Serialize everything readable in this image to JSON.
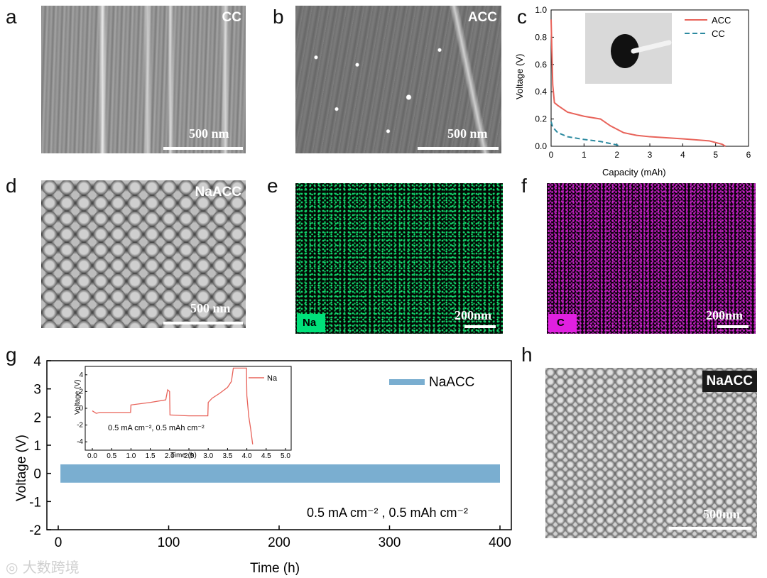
{
  "panels": {
    "a": {
      "letter": "a",
      "tag": "CC",
      "scale": "500 nm"
    },
    "b": {
      "letter": "b",
      "tag": "ACC",
      "scale": "500 nm"
    },
    "c": {
      "letter": "c"
    },
    "d": {
      "letter": "d",
      "tag": "NaACC",
      "scale": "500 nm"
    },
    "e": {
      "letter": "e",
      "tag": "Na",
      "scale": "200nm",
      "color": "#00e07a"
    },
    "f": {
      "letter": "f",
      "tag": "C",
      "scale": "200nm",
      "color": "#e020e0"
    },
    "g": {
      "letter": "g"
    },
    "h": {
      "letter": "h",
      "tag": "NaACC",
      "scale": "500nm"
    }
  },
  "colors": {
    "acc": "#e8635a",
    "cc": "#2c8aa0",
    "naacc": "#7aaed0",
    "na_inset": "#e8635a"
  },
  "chart_data": [
    {
      "type": "line",
      "panel": "c",
      "xlabel": "Capacity (mAh)",
      "ylabel": "Voltage (V)",
      "xlim": [
        0,
        6
      ],
      "ylim": [
        0,
        1.0
      ],
      "xticks": [
        "0",
        "1",
        "2",
        "3",
        "4",
        "5",
        "6"
      ],
      "yticks": [
        "0.0",
        "0.2",
        "0.4",
        "0.6",
        "0.8",
        "1.0"
      ],
      "legend_position": "top-right",
      "series": [
        {
          "name": "ACC",
          "x": [
            0.0,
            0.05,
            0.1,
            0.2,
            0.5,
            1.0,
            1.5,
            1.8,
            2.2,
            2.6,
            3.0,
            4.0,
            4.8,
            5.2,
            5.3
          ],
          "y": [
            0.93,
            0.45,
            0.32,
            0.3,
            0.25,
            0.22,
            0.2,
            0.15,
            0.1,
            0.08,
            0.07,
            0.055,
            0.04,
            0.015,
            0.0
          ]
        },
        {
          "name": "CC",
          "x": [
            0.0,
            0.05,
            0.2,
            0.5,
            1.0,
            1.5,
            2.0,
            2.1
          ],
          "y": [
            0.18,
            0.14,
            0.1,
            0.07,
            0.05,
            0.035,
            0.01,
            0.0
          ]
        }
      ]
    },
    {
      "type": "line",
      "panel": "g",
      "xlabel": "Time (h)",
      "ylabel": "Voltage (V)",
      "xlim": [
        0,
        400
      ],
      "ylim": [
        -2,
        4
      ],
      "xticks": [
        "0",
        "100",
        "200",
        "300",
        "400"
      ],
      "yticks": [
        "-2",
        "-1",
        "0",
        "1",
        "2",
        "3",
        "4"
      ],
      "annotation": "0.5 mA cm⁻² , 0.5 mAh cm⁻²",
      "legend_position": "top-right",
      "series": [
        {
          "name": "NaACC",
          "x_range": [
            2,
            400
          ],
          "band": [
            -0.33,
            0.32
          ]
        }
      ]
    },
    {
      "type": "line",
      "panel": "g-inset",
      "xlabel": "Time (h)",
      "ylabel": "Voltage (V)",
      "xlim": [
        0,
        5
      ],
      "ylim": [
        -5,
        5
      ],
      "xticks": [
        "0.0",
        "0.5",
        "1.0",
        "1.5",
        "2.0",
        "2.5",
        "3.0",
        "3.5",
        "4.0",
        "4.5",
        "5.0"
      ],
      "yticks": [
        "-4",
        "-2",
        "0",
        "2",
        "4"
      ],
      "annotation": "0.5 mA cm⁻², 0.5 mAh cm⁻²",
      "legend_position": "top-right",
      "series": [
        {
          "name": "Na",
          "x": [
            0.0,
            0.1,
            0.2,
            0.5,
            0.99,
            1.0,
            1.5,
            1.9,
            1.95,
            2.0,
            2.01,
            2.5,
            2.99,
            3.0,
            3.1,
            3.3,
            3.5,
            3.6,
            3.65,
            3.7,
            3.8,
            3.99,
            4.0,
            4.05,
            4.1,
            4.15
          ],
          "y": [
            -0.3,
            -0.6,
            -0.5,
            -0.5,
            -0.5,
            0.4,
            0.7,
            1.0,
            2.2,
            2.0,
            -0.8,
            -0.9,
            -0.9,
            0.7,
            1.2,
            1.8,
            2.5,
            3.2,
            4.8,
            4.8,
            4.8,
            4.8,
            1.5,
            -1.0,
            -2.5,
            -4.3
          ]
        }
      ]
    }
  ]
}
